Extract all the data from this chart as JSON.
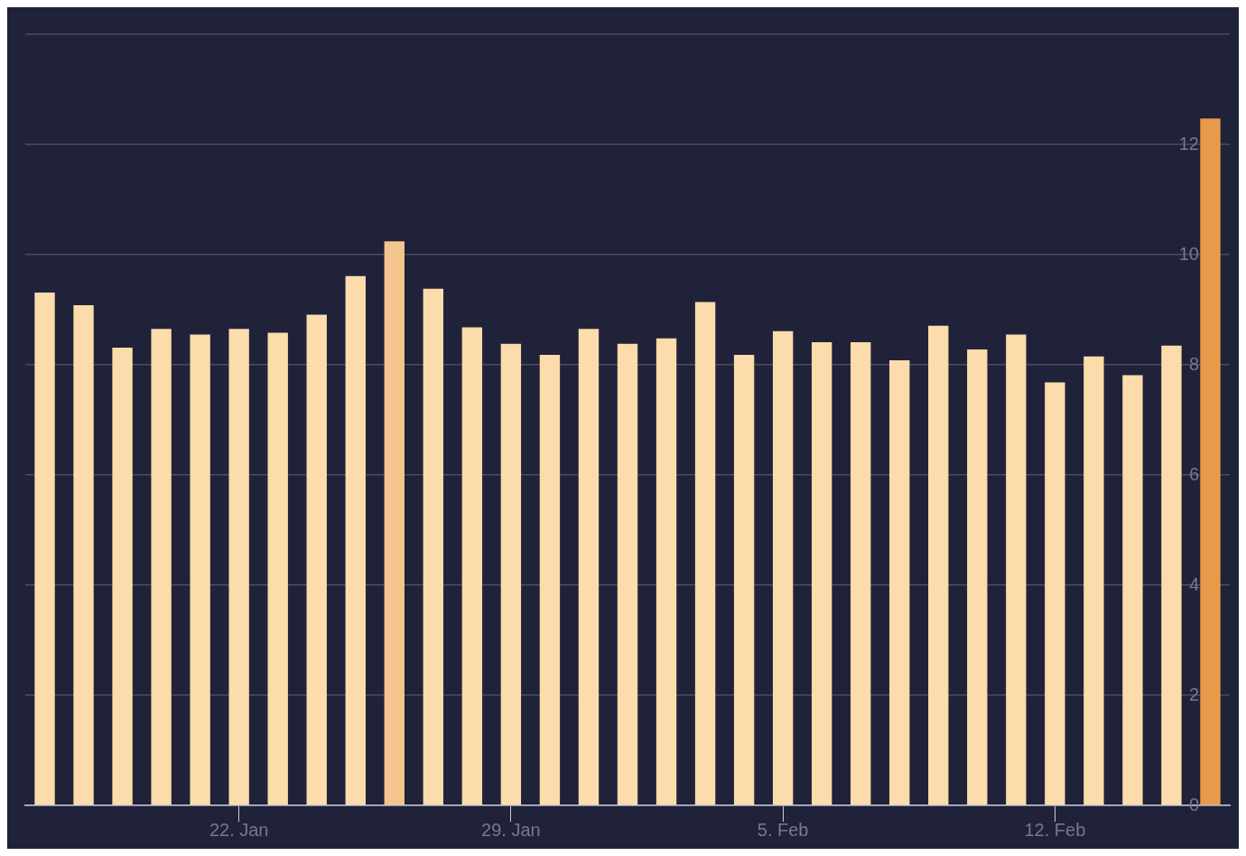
{
  "chart_data": {
    "type": "bar",
    "categories": [
      null,
      null,
      null,
      null,
      null,
      "22. Jan",
      null,
      null,
      null,
      null,
      null,
      null,
      "29. Jan",
      null,
      null,
      null,
      null,
      null,
      null,
      "5. Feb",
      null,
      null,
      null,
      null,
      null,
      null,
      "12. Feb",
      null,
      null,
      null,
      null
    ],
    "values": [
      9.31,
      9.08,
      8.31,
      8.65,
      8.55,
      8.65,
      8.58,
      8.91,
      9.61,
      10.24,
      9.38,
      8.68,
      8.38,
      8.18,
      8.65,
      8.38,
      8.48,
      9.14,
      8.18,
      8.61,
      8.41,
      8.41,
      8.08,
      8.71,
      8.28,
      8.55,
      7.68,
      8.15,
      7.81,
      8.35,
      12.47
    ],
    "colors": [
      "#fbdcaa",
      "#fbdcaa",
      "#fbdcaa",
      "#fbdcaa",
      "#fbdcaa",
      "#fbdcaa",
      "#fbdcaa",
      "#fbdcaa",
      "#fbdcaa",
      "#f4c48e",
      "#fbdcaa",
      "#fbdcaa",
      "#fbdcaa",
      "#fbdcaa",
      "#fbdcaa",
      "#fbdcaa",
      "#fbdcaa",
      "#fbdcaa",
      "#fbdcaa",
      "#fbdcaa",
      "#fbdcaa",
      "#fbdcaa",
      "#fbdcaa",
      "#fbdcaa",
      "#fbdcaa",
      "#fbdcaa",
      "#fbdcaa",
      "#fbdcaa",
      "#fbdcaa",
      "#fbdcaa",
      "#e89a4a"
    ],
    "ylim": [
      0,
      14
    ],
    "yticks": [
      0,
      2,
      4,
      6,
      8,
      10,
      12,
      {
        "value": 14,
        "label": null
      }
    ],
    "grid": "y",
    "legend": false
  }
}
